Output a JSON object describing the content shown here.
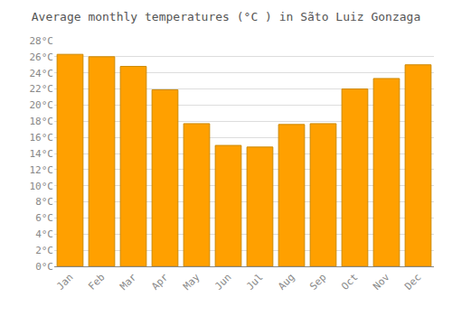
{
  "chart_data": {
    "type": "bar",
    "title": "Average monthly temperatures (°C ) in Sãto Luiz Gonzaga",
    "categories": [
      "Jan",
      "Feb",
      "Mar",
      "Apr",
      "May",
      "Jun",
      "Jul",
      "Aug",
      "Sep",
      "Oct",
      "Nov",
      "Dec"
    ],
    "values": [
      26.3,
      26.0,
      24.8,
      21.9,
      17.7,
      15.0,
      14.8,
      17.6,
      17.7,
      22.0,
      23.3,
      25.0
    ],
    "color": "#FFA000",
    "ylim": [
      0,
      28
    ],
    "yticks": [
      {
        "value": 0,
        "label": "0°C"
      },
      {
        "value": 2,
        "label": "2°C"
      },
      {
        "value": 4,
        "label": "4°C"
      },
      {
        "value": 6,
        "label": "6°C"
      },
      {
        "value": 8,
        "label": "8°C"
      },
      {
        "value": 10,
        "label": "10°C"
      },
      {
        "value": 12,
        "label": "12°C"
      },
      {
        "value": 14,
        "label": "14°C"
      },
      {
        "value": 16,
        "label": "16°C"
      },
      {
        "value": 18,
        "label": "18°C"
      },
      {
        "value": 20,
        "label": "20°C"
      },
      {
        "value": 22,
        "label": "22°C"
      },
      {
        "value": 24,
        "label": "24°C"
      },
      {
        "value": 26,
        "label": "26°C"
      },
      {
        "value": 28,
        "label": "28°C"
      }
    ],
    "grid": true
  }
}
